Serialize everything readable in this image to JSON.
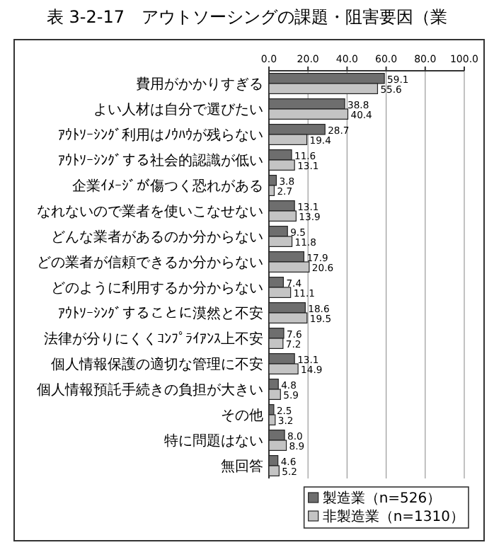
{
  "chart_data": {
    "type": "bar",
    "orientation": "horizontal",
    "title": "表 3-2-17　アウトソーシングの課題・阻害要因（業",
    "categories": [
      "費用がかかりすぎる",
      "よい人材は自分で選びたい",
      "ｱｳﾄｿｰｼﾝｸﾞ利用はﾉｳﾊｳが残らない",
      "ｱｳﾄｿｰｼﾝｸﾞする社会的認識が低い",
      "企業ｲﾒｰｼﾞが傷つく恐れがある",
      "なれないので業者を使いこなせない",
      "どんな業者があるのか分からない",
      "どの業者が信頼できるか分からない",
      "どのように利用するか分からない",
      "ｱｳﾄｿｰｼﾝｸﾞすることに漠然と不安",
      "法律が分りにくくｺﾝﾌﾟﾗｲｱﾝｽ上不安",
      "個人情報保護の適切な管理に不安",
      "個人情報預託手続きの負担が大きい",
      "その他",
      "特に問題はない",
      "無回答"
    ],
    "series": [
      {
        "name": "製造業（n=526）",
        "color": "#6e6e6e",
        "values": [
          59.1,
          38.8,
          28.7,
          11.6,
          3.8,
          13.1,
          9.5,
          17.9,
          7.4,
          18.6,
          7.6,
          13.1,
          4.8,
          2.5,
          8.0,
          4.6
        ],
        "value_labels": [
          "59.1",
          "38.8",
          "28.7",
          "11.6",
          "3.8",
          "13.1",
          "9.5",
          "17.9",
          "7.4",
          "18.6",
          "7.6",
          "13.1",
          "4.8",
          "2.5",
          "8.0",
          "4.6"
        ]
      },
      {
        "name": "非製造業（n=1310）",
        "color": "#c4c4c4",
        "values": [
          55.6,
          40.4,
          19.4,
          13.1,
          2.7,
          13.9,
          11.8,
          20.6,
          11.1,
          19.5,
          7.2,
          14.9,
          5.9,
          3.2,
          8.9,
          5.2
        ],
        "value_labels": [
          "55.6",
          "40.4",
          "19.4",
          "13.1",
          "2.7",
          "13.9",
          "11.8",
          "20.6",
          "11.1",
          "19.5",
          "7.2",
          "14.9",
          "5.9",
          "3.2",
          "8.9",
          "5.2"
        ]
      }
    ],
    "xlim": [
      0,
      100
    ],
    "xticks": [
      {
        "value": 0,
        "label": "0.0"
      },
      {
        "value": 20,
        "label": "20.0"
      },
      {
        "value": 40,
        "label": "40.0"
      },
      {
        "value": 60,
        "label": "60.0"
      },
      {
        "value": 80,
        "label": "80.0"
      },
      {
        "value": 100,
        "label": "100.0"
      }
    ],
    "grid": "x",
    "legend": "bottom right"
  }
}
